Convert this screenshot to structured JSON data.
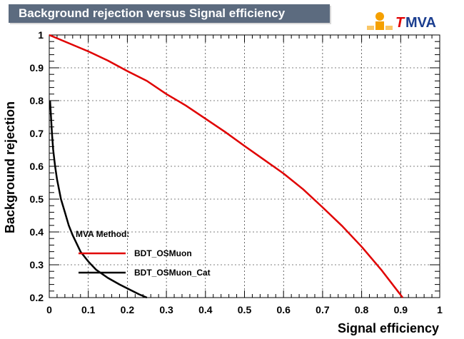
{
  "title": "Background rejection versus Signal efficiency",
  "logo": {
    "text": "MVA",
    "prefix": "T",
    "icon": "tmva-logo-icon"
  },
  "chart_data": {
    "type": "line",
    "title": "Background rejection versus Signal efficiency",
    "xlabel": "Signal efficiency",
    "ylabel": "Background rejection",
    "xlim": [
      0,
      1
    ],
    "ylim": [
      0.2,
      1
    ],
    "xticks": [
      "0",
      "0.1",
      "0.2",
      "0.3",
      "0.4",
      "0.5",
      "0.6",
      "0.7",
      "0.8",
      "0.9",
      "1"
    ],
    "yticks": [
      "0.2",
      "0.3",
      "0.4",
      "0.5",
      "0.6",
      "0.7",
      "0.8",
      "0.9",
      "1"
    ],
    "grid": true,
    "legend": {
      "header": "MVA Method:",
      "position": "bottom-left"
    },
    "series": [
      {
        "name": "BDT_OSMuon",
        "color": "#e00000",
        "x": [
          0.0,
          0.02,
          0.05,
          0.1,
          0.15,
          0.2,
          0.25,
          0.3,
          0.35,
          0.4,
          0.45,
          0.5,
          0.55,
          0.6,
          0.65,
          0.7,
          0.75,
          0.8,
          0.85,
          0.9,
          0.905
        ],
        "y": [
          1.0,
          0.99,
          0.975,
          0.95,
          0.922,
          0.89,
          0.86,
          0.82,
          0.785,
          0.745,
          0.705,
          0.662,
          0.62,
          0.578,
          0.53,
          0.475,
          0.418,
          0.355,
          0.285,
          0.208,
          0.2
        ]
      },
      {
        "name": "BDT_OSMuon_Cat",
        "color": "#000000",
        "x": [
          0.002,
          0.004,
          0.007,
          0.01,
          0.015,
          0.02,
          0.03,
          0.04,
          0.05,
          0.06,
          0.08,
          0.1,
          0.12,
          0.15,
          0.18,
          0.2,
          0.23,
          0.25
        ],
        "y": [
          0.8,
          0.76,
          0.7,
          0.65,
          0.6,
          0.56,
          0.5,
          0.46,
          0.42,
          0.39,
          0.34,
          0.31,
          0.285,
          0.26,
          0.24,
          0.228,
          0.21,
          0.2
        ]
      }
    ]
  }
}
